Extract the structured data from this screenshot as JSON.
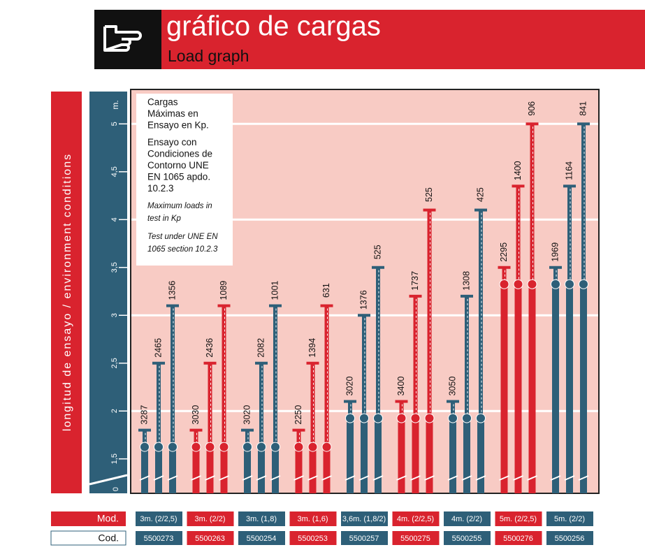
{
  "header": {
    "title": "gráfico de cargas",
    "subtitle": "Load graph"
  },
  "side_label": "longitud de ensayo / environment conditions",
  "chart_data": {
    "type": "prop-groups",
    "axis_unit": "m.",
    "axis_break_label": "0",
    "ylim": [
      1.14,
      5.36
    ],
    "yticks": [
      {
        "value": 1.5,
        "label": "1,5"
      },
      2,
      {
        "value": 2.5,
        "label": "2,5"
      },
      3,
      {
        "value": 3.5,
        "label": "3,5"
      },
      4,
      {
        "value": 4.5,
        "label": "4,5"
      },
      5
    ],
    "grid": true,
    "legend": [
      {
        "lines": [
          "Cargas",
          "Máximas en",
          "Ensayo en Kp."
        ],
        "italic": false
      },
      {
        "lines": [
          "Ensayo con",
          "Condiciones de",
          "Contorno UNE",
          "EN 1065 apdo.",
          "10.2.3"
        ],
        "italic": false
      },
      {
        "lines": [
          "Maximum loads in",
          "test in Kp"
        ],
        "italic": true
      },
      {
        "lines": [
          "Test under UNE EN",
          "1065 section 10.2.3"
        ],
        "italic": true
      }
    ],
    "row_labels": [
      "Mod.",
      "Cod."
    ],
    "groups": [
      {
        "model": "3m. (2/2,5)",
        "code": "5500273",
        "color": "#2e5f78",
        "lengths": [
          1.8,
          2.5,
          3.1
        ],
        "loads": [
          3287,
          2465,
          1356
        ]
      },
      {
        "model": "3m. (2/2)",
        "code": "5500263",
        "color": "#d9232e",
        "lengths": [
          1.8,
          2.5,
          3.1
        ],
        "loads": [
          3030,
          2436,
          1089
        ]
      },
      {
        "model": "3m. (1,8)",
        "code": "5500254",
        "color": "#2e5f78",
        "lengths": [
          1.8,
          2.5,
          3.1
        ],
        "loads": [
          3020,
          2082,
          1001
        ]
      },
      {
        "model": "3m. (1,6)",
        "code": "5500253",
        "color": "#d9232e",
        "lengths": [
          1.8,
          2.5,
          3.1
        ],
        "loads": [
          2250,
          1394,
          631
        ]
      },
      {
        "model": "3,6m. (1,8/2)",
        "code": "5500257",
        "color": "#2e5f78",
        "lengths": [
          2.1,
          3.0,
          3.5
        ],
        "loads": [
          3020,
          1376,
          525
        ]
      },
      {
        "model": "4m. (2/2,5)",
        "code": "5500275",
        "color": "#d9232e",
        "lengths": [
          2.1,
          3.2,
          4.1
        ],
        "loads": [
          3400,
          1737,
          525
        ]
      },
      {
        "model": "4m. (2/2)",
        "code": "5500255",
        "color": "#2e5f78",
        "lengths": [
          2.1,
          3.2,
          4.1
        ],
        "loads": [
          3050,
          1308,
          425
        ]
      },
      {
        "model": "5m. (2/2,5)",
        "code": "5500276",
        "color": "#d9232e",
        "lengths": [
          3.5,
          4.35,
          5.0
        ],
        "loads": [
          2295,
          1400,
          906
        ]
      },
      {
        "model": "5m. (2/2)",
        "code": "5500256",
        "color": "#2e5f78",
        "lengths": [
          3.5,
          4.35,
          5.0
        ],
        "loads": [
          1969,
          1164,
          841
        ]
      }
    ]
  }
}
